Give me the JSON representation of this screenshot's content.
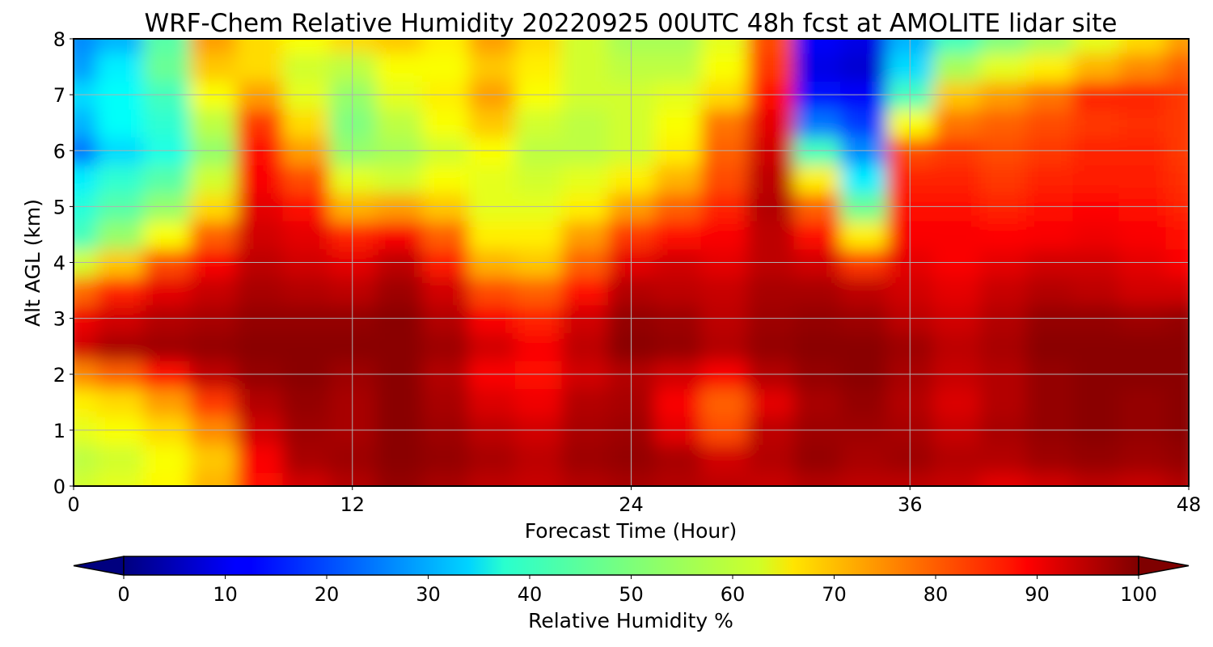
{
  "chart_data": {
    "type": "heatmap",
    "title": "WRF-Chem Relative Humidity 20220925 00UTC 48h fcst at AMOLITE lidar site",
    "xlabel": "Forecast Time (Hour)",
    "ylabel": "Alt AGL (km)",
    "xlim": [
      0,
      48
    ],
    "ylim": [
      0,
      8
    ],
    "xticks": [
      0,
      12,
      24,
      36,
      48
    ],
    "yticks": [
      0,
      1,
      2,
      3,
      4,
      5,
      6,
      7,
      8
    ],
    "grid": true,
    "colormap": "jet",
    "colorbar": {
      "label": "Relative Humidity %",
      "range": [
        0,
        100
      ],
      "ticks": [
        0,
        10,
        20,
        30,
        40,
        50,
        60,
        70,
        80,
        90,
        100
      ],
      "extend": "both",
      "orientation": "horizontal",
      "placement": "bottom"
    },
    "x": [
      0,
      2,
      4,
      6,
      8,
      10,
      12,
      14,
      16,
      18,
      20,
      22,
      24,
      26,
      28,
      30,
      32,
      34,
      36,
      38,
      40,
      42,
      44,
      46,
      48
    ],
    "y": [
      0,
      0.5,
      1,
      1.5,
      2,
      2.5,
      3,
      3.5,
      4,
      4.5,
      5,
      5.5,
      6,
      6.5,
      7,
      7.5,
      8
    ],
    "z": [
      [
        58,
        60,
        63,
        70,
        86,
        92,
        95,
        98,
        96,
        94,
        93,
        95,
        96,
        95,
        94,
        93,
        95,
        94,
        94,
        93,
        90,
        92,
        94,
        93,
        95
      ],
      [
        56,
        58,
        62,
        68,
        88,
        96,
        97,
        99,
        98,
        96,
        94,
        97,
        98,
        96,
        92,
        95,
        98,
        96,
        97,
        95,
        95,
        97,
        98,
        97,
        98
      ],
      [
        60,
        62,
        66,
        74,
        92,
        97,
        96,
        99,
        97,
        94,
        92,
        96,
        97,
        90,
        80,
        94,
        97,
        97,
        96,
        93,
        96,
        98,
        99,
        98,
        99
      ],
      [
        64,
        66,
        72,
        82,
        95,
        98,
        96,
        99,
        96,
        91,
        89,
        95,
        96,
        88,
        78,
        90,
        96,
        98,
        95,
        91,
        95,
        98,
        99,
        98,
        99
      ],
      [
        74,
        78,
        86,
        94,
        98,
        99,
        97,
        99,
        95,
        88,
        86,
        92,
        95,
        92,
        88,
        95,
        98,
        99,
        96,
        93,
        95,
        98,
        99,
        99,
        99
      ],
      [
        92,
        96,
        97,
        98,
        99,
        99,
        99,
        99,
        97,
        92,
        88,
        94,
        99,
        98,
        95,
        98,
        99,
        99,
        97,
        94,
        96,
        99,
        99,
        99,
        99
      ],
      [
        89,
        92,
        95,
        96,
        98,
        98,
        98,
        99,
        95,
        88,
        84,
        92,
        98,
        97,
        94,
        97,
        98,
        97,
        94,
        92,
        95,
        98,
        98,
        97,
        98
      ],
      [
        77,
        84,
        90,
        93,
        96,
        95,
        94,
        97,
        92,
        80,
        78,
        86,
        95,
        94,
        93,
        96,
        96,
        94,
        92,
        90,
        93,
        95,
        94,
        92,
        92
      ],
      [
        58,
        68,
        80,
        88,
        94,
        92,
        90,
        94,
        85,
        70,
        68,
        78,
        90,
        92,
        90,
        94,
        92,
        82,
        90,
        88,
        90,
        92,
        92,
        90,
        88
      ],
      [
        44,
        52,
        62,
        78,
        92,
        90,
        84,
        88,
        78,
        64,
        64,
        72,
        82,
        86,
        88,
        94,
        86,
        64,
        88,
        88,
        87,
        88,
        89,
        88,
        86
      ],
      [
        41,
        46,
        52,
        66,
        90,
        86,
        70,
        72,
        68,
        60,
        60,
        64,
        72,
        78,
        84,
        95,
        78,
        48,
        86,
        86,
        84,
        86,
        87,
        86,
        84
      ],
      [
        36,
        42,
        46,
        58,
        88,
        80,
        60,
        58,
        62,
        60,
        58,
        60,
        64,
        70,
        80,
        94,
        64,
        36,
        84,
        84,
        82,
        84,
        85,
        85,
        83
      ],
      [
        24,
        34,
        40,
        52,
        86,
        72,
        52,
        54,
        58,
        62,
        56,
        56,
        58,
        64,
        78,
        92,
        44,
        26,
        80,
        82,
        80,
        82,
        84,
        84,
        82
      ],
      [
        30,
        38,
        42,
        56,
        82,
        66,
        50,
        56,
        62,
        68,
        58,
        56,
        58,
        62,
        76,
        90,
        24,
        18,
        62,
        76,
        78,
        80,
        82,
        83,
        82
      ],
      [
        34,
        38,
        44,
        62,
        72,
        60,
        52,
        60,
        64,
        72,
        62,
        58,
        58,
        60,
        66,
        86,
        14,
        12,
        44,
        68,
        72,
        76,
        84,
        84,
        82
      ],
      [
        28,
        36,
        48,
        68,
        66,
        58,
        56,
        62,
        62,
        68,
        64,
        58,
        56,
        56,
        62,
        82,
        10,
        8,
        34,
        54,
        60,
        64,
        70,
        74,
        78
      ],
      [
        26,
        30,
        46,
        72,
        66,
        62,
        66,
        68,
        64,
        72,
        66,
        58,
        54,
        54,
        60,
        80,
        12,
        10,
        30,
        44,
        50,
        54,
        60,
        66,
        72
      ]
    ]
  }
}
